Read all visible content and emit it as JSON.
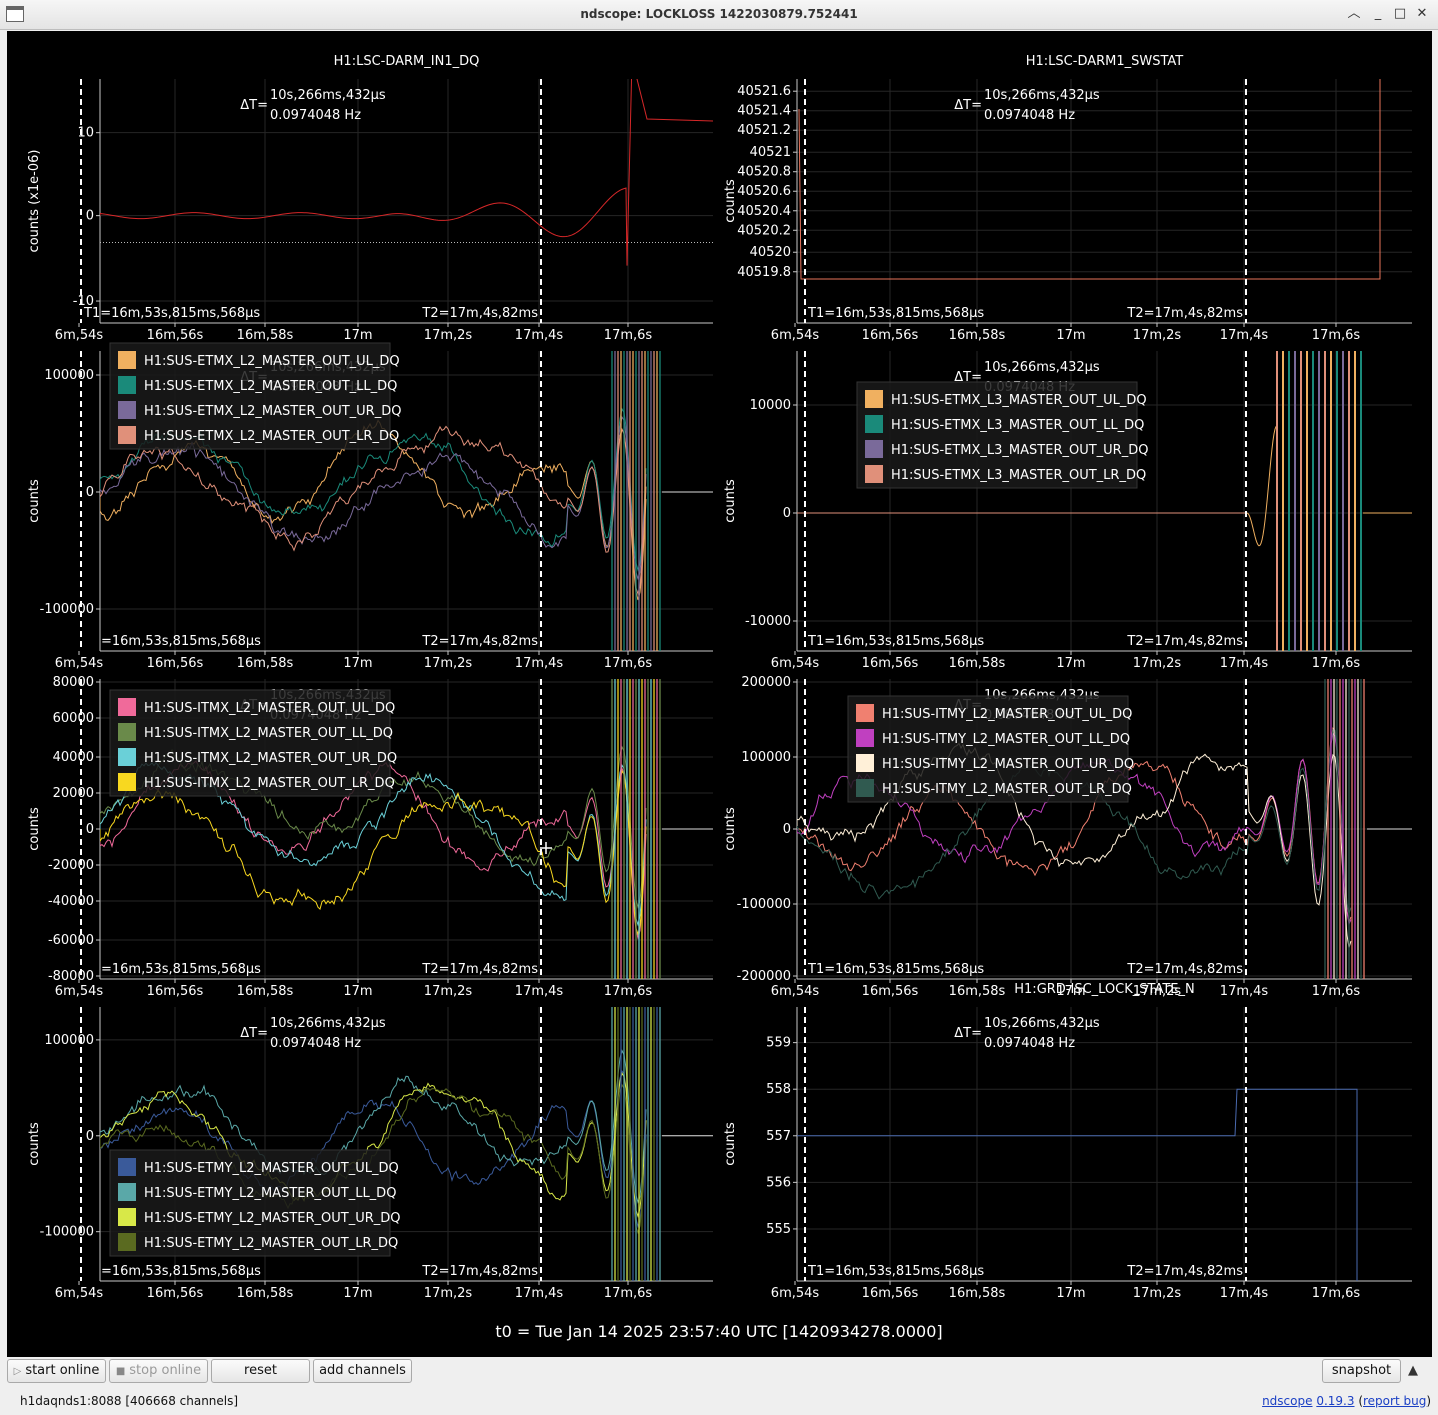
{
  "window": {
    "title": "ndscope: LOCKLOSS 1422030879.752441"
  },
  "t0": "t0 = Tue Jan 14 2025 23:57:40 UTC [1420934278.0000]",
  "cursors": {
    "dt": "ΔT=",
    "dt_value": "10s,266ms,432µs",
    "freq": "0.0974048 Hz",
    "t1": "T1=16m,53s,815ms,568µs",
    "t1_clipped": "=16m,53s,815ms,568µs",
    "t2": "T2=17m,4s,82ms"
  },
  "xticks": [
    "6m,54s",
    "16m,56s",
    "16m,58s",
    "17m",
    "17m,2s",
    "17m,4s",
    "17m,6s"
  ],
  "colors": {
    "bg": "#000000",
    "axis": "#c8c8c8",
    "text": "#ffffff",
    "grid": "#2a2a2a"
  },
  "panels": [
    {
      "title": "H1:LSC-DARM_IN1_DQ",
      "ylabel": "counts (x1e-06)",
      "yticks": [
        "10",
        "0",
        "-10"
      ],
      "series": [
        {
          "name": "H1:LSC-DARM_IN1_DQ",
          "color": "#d62728"
        }
      ]
    },
    {
      "title": "H1:LSC-DARM1_SWSTAT",
      "ylabel": "counts",
      "yticks": [
        "40521.6",
        "40521.4",
        "40521.2",
        "40521",
        "40520.8",
        "40520.6",
        "40520.4",
        "40520.2",
        "40520",
        "40519.8"
      ],
      "series": [
        {
          "name": "H1:LSC-DARM1_SWSTAT",
          "color": "#e8735a"
        }
      ]
    },
    {
      "title": "",
      "ylabel": "counts",
      "yticks": [
        "100000",
        "0",
        "-100000"
      ],
      "legend": [
        "H1:SUS-ETMX_L2_MASTER_OUT_UL_DQ",
        "H1:SUS-ETMX_L2_MASTER_OUT_LL_DQ",
        "H1:SUS-ETMX_L2_MASTER_OUT_UR_DQ",
        "H1:SUS-ETMX_L2_MASTER_OUT_LR_DQ"
      ],
      "colors": [
        "#f0b060",
        "#1a8a7a",
        "#7a6a9a",
        "#e0907a"
      ]
    },
    {
      "title": "",
      "ylabel": "counts",
      "yticks": [
        "10000",
        "0",
        "-10000"
      ],
      "legend": [
        "H1:SUS-ETMX_L3_MASTER_OUT_UL_DQ",
        "H1:SUS-ETMX_L3_MASTER_OUT_LL_DQ",
        "H1:SUS-ETMX_L3_MASTER_OUT_UR_DQ",
        "H1:SUS-ETMX_L3_MASTER_OUT_LR_DQ"
      ],
      "colors": [
        "#f0b060",
        "#1a8a7a",
        "#7a6a9a",
        "#e0907a"
      ]
    },
    {
      "title": "",
      "ylabel": "counts",
      "yticks": [
        "80000",
        "60000",
        "40000",
        "20000",
        "0",
        "-20000",
        "-40000",
        "-60000",
        "-80000"
      ],
      "legend": [
        "H1:SUS-ITMX_L2_MASTER_OUT_UL_DQ",
        "H1:SUS-ITMX_L2_MASTER_OUT_LL_DQ",
        "H1:SUS-ITMX_L2_MASTER_OUT_UR_DQ",
        "H1:SUS-ITMX_L2_MASTER_OUT_LR_DQ"
      ],
      "colors": [
        "#f06a9a",
        "#6a8a4a",
        "#6ad0d8",
        "#f8d820"
      ]
    },
    {
      "title": "",
      "ylabel": "counts",
      "yticks": [
        "200000",
        "100000",
        "0",
        "-100000",
        "-200000"
      ],
      "legend": [
        "H1:SUS-ITMY_L2_MASTER_OUT_UL_DQ",
        "H1:SUS-ITMY_L2_MASTER_OUT_LL_DQ",
        "H1:SUS-ITMY_L2_MASTER_OUT_UR_DQ",
        "H1:SUS-ITMY_L2_MASTER_OUT_LR_DQ"
      ],
      "colors": [
        "#f08070",
        "#c040c0",
        "#fff0d8",
        "#305a50"
      ]
    },
    {
      "title": "",
      "ylabel": "counts",
      "yticks": [
        "100000",
        "0",
        "-100000"
      ],
      "legend": [
        "H1:SUS-ETMY_L2_MASTER_OUT_UL_DQ",
        "H1:SUS-ETMY_L2_MASTER_OUT_LL_DQ",
        "H1:SUS-ETMY_L2_MASTER_OUT_UR_DQ",
        "H1:SUS-ETMY_L2_MASTER_OUT_LR_DQ"
      ],
      "colors": [
        "#3a5a9a",
        "#5aa8a8",
        "#d8e848",
        "#5a6a20"
      ]
    },
    {
      "title": "H1:GRD-ISC_LOCK_STATE_N",
      "ylabel": "counts",
      "yticks": [
        "559",
        "558",
        "557",
        "556",
        "555"
      ],
      "series": [
        {
          "name": "H1:GRD-ISC_LOCK_STATE_N",
          "color": "#4a6ab0"
        }
      ]
    }
  ],
  "toolbar": {
    "start_online": "start online",
    "stop_online": "stop online",
    "reset": "reset",
    "add_channels": "add channels",
    "snapshot": "snapshot"
  },
  "status": {
    "server": "h1daqnds1:8088  [406668 channels]",
    "app": "ndscope",
    "version": "0.19.3",
    "report": "report bug"
  }
}
